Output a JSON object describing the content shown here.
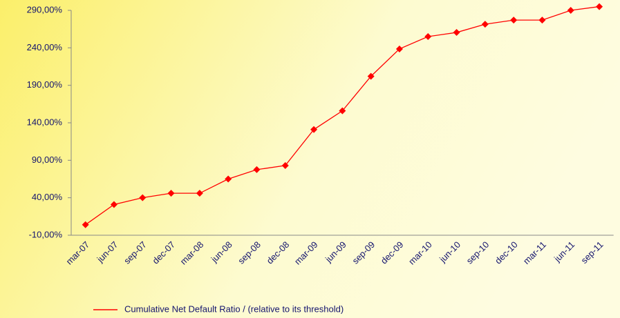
{
  "chart_data": {
    "type": "line",
    "categories": [
      "mar-07",
      "jun-07",
      "sep-07",
      "dec-07",
      "mar-08",
      "jun-08",
      "sep-08",
      "dec-08",
      "mar-09",
      "jun-09",
      "sep-09",
      "dec-09",
      "mar-10",
      "jun-10",
      "sep-10",
      "dec-10",
      "mar-11",
      "jun-11",
      "sep-11"
    ],
    "series": [
      {
        "name": "Cumulative Net Default Ratio / (relative to its threshold)",
        "color": "#ff0000",
        "values": [
          4,
          31,
          40,
          46,
          46,
          65,
          77.5,
          83,
          131,
          156,
          202,
          238.5,
          255,
          260.5,
          271.5,
          277,
          277,
          290,
          295
        ]
      }
    ],
    "ylim": [
      -10,
      290
    ],
    "yticks": [
      {
        "value": -10,
        "label": "-10,00%"
      },
      {
        "value": 40,
        "label": "40,00%"
      },
      {
        "value": 90,
        "label": "90,00%"
      },
      {
        "value": 140,
        "label": "140,00%"
      },
      {
        "value": 190,
        "label": "190,00%"
      },
      {
        "value": 240,
        "label": "240,00%"
      },
      {
        "value": 290,
        "label": "290,00%"
      }
    ],
    "grid": false,
    "legend": "bottom"
  }
}
